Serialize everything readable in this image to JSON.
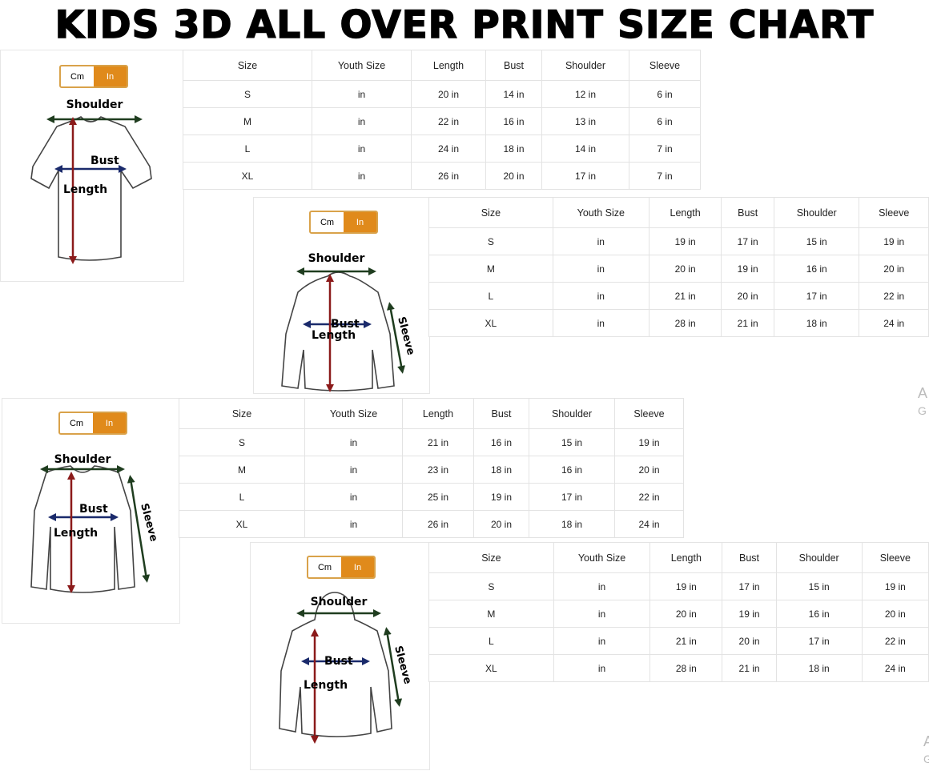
{
  "title": "KIDS 3D ALL OVER PRINT SIZE CHART",
  "colors": {
    "toggle_active": "#e08a1b",
    "toggle_border": "#d9a24a",
    "length_arrow": "#8b1a1a",
    "bust_arrow": "#1a2a6b",
    "shoulder_arrow": "#1f3d1f"
  },
  "toggle": {
    "cm": "Cm",
    "in": "In",
    "active": "In"
  },
  "charts": [
    {
      "garment": "t-shirt",
      "labels": {
        "shoulder": "Shoulder",
        "bust": "Bust",
        "length": "Length"
      },
      "headers": [
        "Size",
        "Youth Size",
        "Length",
        "Bust",
        "Shoulder",
        "Sleeve"
      ],
      "rows": [
        [
          "S",
          "in",
          "20 in",
          "14 in",
          "12 in",
          "6 in"
        ],
        [
          "M",
          "in",
          "22 in",
          "16 in",
          "13 in",
          "6 in"
        ],
        [
          "L",
          "in",
          "24 in",
          "18 in",
          "14 in",
          "7 in"
        ],
        [
          "XL",
          "in",
          "26 in",
          "20 in",
          "17 in",
          "7 in"
        ]
      ]
    },
    {
      "garment": "zip-hoodie",
      "labels": {
        "shoulder": "Shoulder",
        "bust": "Bust",
        "length": "Length",
        "sleeve": "Sleeve"
      },
      "headers": [
        "Size",
        "Youth Size",
        "Length",
        "Bust",
        "Shoulder",
        "Sleeve"
      ],
      "rows": [
        [
          "S",
          "in",
          "19 in",
          "17 in",
          "15 in",
          "19 in"
        ],
        [
          "M",
          "in",
          "20 in",
          "19 in",
          "16 in",
          "20 in"
        ],
        [
          "L",
          "in",
          "21 in",
          "20 in",
          "17 in",
          "22 in"
        ],
        [
          "XL",
          "in",
          "28 in",
          "21 in",
          "18 in",
          "24 in"
        ]
      ]
    },
    {
      "garment": "long-sleeve",
      "labels": {
        "shoulder": "Shoulder",
        "bust": "Bust",
        "length": "Length",
        "sleeve": "Sleeve"
      },
      "headers": [
        "Size",
        "Youth Size",
        "Length",
        "Bust",
        "Shoulder",
        "Sleeve"
      ],
      "rows": [
        [
          "S",
          "in",
          "21 in",
          "16 in",
          "15 in",
          "19 in"
        ],
        [
          "M",
          "in",
          "23 in",
          "18 in",
          "16 in",
          "20 in"
        ],
        [
          "L",
          "in",
          "25 in",
          "19 in",
          "17 in",
          "22 in"
        ],
        [
          "XL",
          "in",
          "26 in",
          "20 in",
          "18 in",
          "24 in"
        ]
      ]
    },
    {
      "garment": "pullover-hoodie",
      "labels": {
        "shoulder": "Shoulder",
        "bust": "Bust",
        "length": "Length",
        "sleeve": "Sleeve"
      },
      "headers": [
        "Size",
        "Youth Size",
        "Length",
        "Bust",
        "Shoulder",
        "Sleeve"
      ],
      "rows": [
        [
          "S",
          "in",
          "19 in",
          "17 in",
          "15 in",
          "19 in"
        ],
        [
          "M",
          "in",
          "20 in",
          "19 in",
          "16 in",
          "20 in"
        ],
        [
          "L",
          "in",
          "21 in",
          "20 in",
          "17 in",
          "22 in"
        ],
        [
          "XL",
          "in",
          "28 in",
          "21 in",
          "18 in",
          "24 in"
        ]
      ]
    }
  ],
  "watermark": [
    {
      "line1": "A",
      "line2": "G"
    },
    {
      "line1": "A",
      "line2": "G"
    }
  ]
}
